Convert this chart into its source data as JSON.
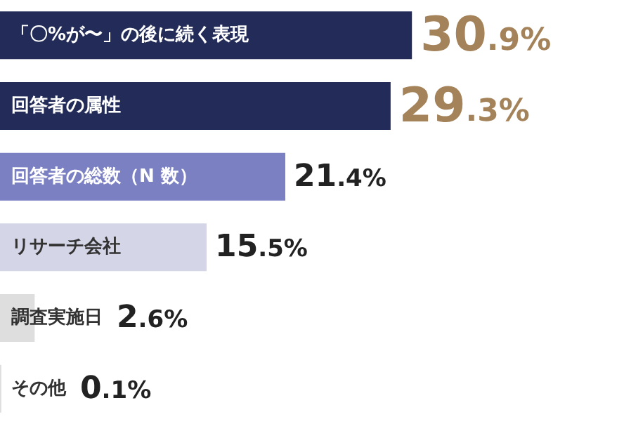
{
  "chart_data": {
    "type": "bar",
    "orientation": "horizontal",
    "categories": [
      "「〇%が〜」の後に続く表現",
      "回答者の属性",
      "回答者の総数（N 数）",
      "リサーチ会社",
      "調査実施日",
      "その他"
    ],
    "values": [
      30.9,
      29.3,
      21.4,
      15.5,
      2.6,
      0.1
    ],
    "colors": [
      "#232c58",
      "#232c58",
      "#7b80c3",
      "#d4d6e7",
      "#dedede",
      "#dedede"
    ],
    "value_labels": [
      "30.9%",
      "29.3%",
      "21.4%",
      "15.5%",
      "2.6%",
      "0.1%"
    ]
  }
}
